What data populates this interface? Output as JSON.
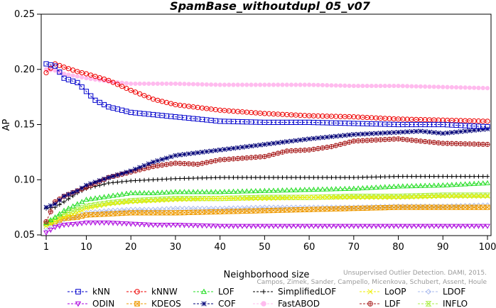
{
  "chart_data": {
    "type": "line",
    "title": "SpamBase_withoutdupl_05_v07",
    "xlabel": "Neighborhood size",
    "ylabel": "AP",
    "xlim": [
      1,
      100
    ],
    "ylim": [
      0.05,
      0.25
    ],
    "x_ticks": [
      1,
      10,
      20,
      30,
      40,
      50,
      60,
      70,
      80,
      90,
      100
    ],
    "x_tick_labels": [
      "1",
      "10",
      "20",
      "30",
      "40",
      "50",
      "60",
      "70",
      "80",
      "90",
      "100"
    ],
    "y_ticks": [
      0.05,
      0.1,
      0.15,
      0.2,
      0.25
    ],
    "y_tick_labels": [
      "0.05",
      "0.10",
      "0.15",
      "0.20",
      "0.25"
    ],
    "grid": false,
    "legend_position": "bottom",
    "watermark": [
      "Unsupervised Outlier Detection. DAMI, 2015.",
      "Campos, Zimek, Sander, Campello, Micenkova, Schubert, Assent, Houle"
    ],
    "series": [
      {
        "name": "kNN",
        "color": "#0000cc",
        "marker": "square",
        "k": [
          1,
          3,
          5,
          8,
          10,
          12,
          15,
          20,
          25,
          30,
          40,
          50,
          60,
          70,
          80,
          90,
          100
        ],
        "values": [
          0.205,
          0.203,
          0.192,
          0.188,
          0.18,
          0.172,
          0.166,
          0.161,
          0.159,
          0.157,
          0.153,
          0.152,
          0.152,
          0.151,
          0.15,
          0.15,
          0.148
        ]
      },
      {
        "name": "kNNW",
        "color": "#ee0000",
        "marker": "circle",
        "k": [
          1,
          3,
          5,
          8,
          10,
          15,
          20,
          25,
          30,
          40,
          50,
          60,
          70,
          80,
          90,
          100
        ],
        "values": [
          0.197,
          0.205,
          0.202,
          0.198,
          0.196,
          0.19,
          0.181,
          0.173,
          0.168,
          0.163,
          0.16,
          0.158,
          0.157,
          0.155,
          0.154,
          0.153
        ]
      },
      {
        "name": "LOF",
        "color": "#22dd22",
        "marker": "triangle",
        "k": [
          1,
          3,
          5,
          8,
          10,
          15,
          20,
          25,
          30,
          40,
          50,
          60,
          70,
          80,
          90,
          100
        ],
        "values": [
          0.061,
          0.066,
          0.072,
          0.078,
          0.082,
          0.085,
          0.088,
          0.088,
          0.089,
          0.089,
          0.09,
          0.091,
          0.092,
          0.094,
          0.095,
          0.097
        ]
      },
      {
        "name": "SimplifiedLOF",
        "color": "#000000",
        "marker": "plus",
        "k": [
          1,
          3,
          5,
          8,
          10,
          15,
          20,
          25,
          30,
          40,
          50,
          60,
          70,
          80,
          90,
          100
        ],
        "values": [
          0.074,
          0.075,
          0.08,
          0.088,
          0.092,
          0.097,
          0.099,
          0.1,
          0.101,
          0.102,
          0.102,
          0.102,
          0.102,
          0.103,
          0.103,
          0.103
        ]
      },
      {
        "name": "LoOP",
        "color": "#eeee00",
        "marker": "x",
        "k": [
          1,
          3,
          5,
          8,
          10,
          15,
          20,
          25,
          30,
          40,
          50,
          60,
          70,
          80,
          90,
          100
        ],
        "values": [
          0.058,
          0.062,
          0.066,
          0.07,
          0.074,
          0.078,
          0.08,
          0.081,
          0.082,
          0.083,
          0.083,
          0.084,
          0.084,
          0.084,
          0.085,
          0.085
        ]
      },
      {
        "name": "LDOF",
        "color": "#aabbee",
        "marker": "diamond",
        "k": [
          1,
          3,
          5,
          8,
          10,
          15,
          20,
          25,
          30,
          40,
          50,
          60,
          70,
          80,
          90,
          100
        ],
        "values": [
          0.056,
          0.06,
          0.064,
          0.067,
          0.07,
          0.072,
          0.073,
          0.073,
          0.074,
          0.074,
          0.075,
          0.075,
          0.075,
          0.076,
          0.076,
          0.077
        ]
      },
      {
        "name": "ODIN",
        "color": "#aa00dd",
        "marker": "triangle-down",
        "k": [
          1,
          3,
          5,
          8,
          10,
          15,
          20,
          25,
          30,
          40,
          50,
          60,
          70,
          80,
          90,
          100
        ],
        "values": [
          0.052,
          0.057,
          0.059,
          0.06,
          0.061,
          0.061,
          0.06,
          0.059,
          0.059,
          0.058,
          0.058,
          0.058,
          0.058,
          0.058,
          0.058,
          0.058
        ]
      },
      {
        "name": "KDEOS",
        "color": "#ee9900",
        "marker": "square-x",
        "k": [
          1,
          3,
          5,
          8,
          10,
          15,
          20,
          25,
          30,
          40,
          50,
          60,
          70,
          80,
          90,
          100
        ],
        "values": [
          0.06,
          0.062,
          0.065,
          0.066,
          0.068,
          0.069,
          0.07,
          0.07,
          0.07,
          0.071,
          0.072,
          0.073,
          0.074,
          0.075,
          0.075,
          0.075
        ]
      },
      {
        "name": "COF",
        "color": "#000077",
        "marker": "asterisk",
        "k": [
          1,
          3,
          5,
          8,
          10,
          15,
          20,
          25,
          30,
          40,
          50,
          60,
          70,
          80,
          85,
          90,
          100
        ],
        "values": [
          0.075,
          0.078,
          0.085,
          0.09,
          0.095,
          0.102,
          0.108,
          0.116,
          0.122,
          0.127,
          0.132,
          0.137,
          0.141,
          0.143,
          0.144,
          0.142,
          0.146
        ]
      },
      {
        "name": "FastABOD",
        "color": "#ffbbee",
        "marker": "circle-filled",
        "k": [
          1,
          3,
          5,
          10,
          15,
          20,
          30,
          40,
          50,
          60,
          70,
          80,
          90,
          100
        ],
        "values": [
          0.2,
          0.199,
          0.196,
          0.192,
          0.189,
          0.187,
          0.187,
          0.186,
          0.186,
          0.186,
          0.185,
          0.185,
          0.184,
          0.183
        ]
      },
      {
        "name": "LDF",
        "color": "#aa2222",
        "marker": "circle-plus",
        "k": [
          1,
          3,
          5,
          8,
          10,
          15,
          20,
          25,
          30,
          35,
          40,
          50,
          55,
          60,
          65,
          70,
          80,
          90,
          100
        ],
        "values": [
          0.062,
          0.08,
          0.085,
          0.09,
          0.093,
          0.102,
          0.107,
          0.112,
          0.115,
          0.114,
          0.118,
          0.121,
          0.126,
          0.127,
          0.13,
          0.135,
          0.137,
          0.133,
          0.132
        ]
      },
      {
        "name": "INFLO",
        "color": "#aaee44",
        "marker": "hourglass",
        "k": [
          1,
          3,
          5,
          8,
          10,
          15,
          20,
          25,
          30,
          40,
          50,
          60,
          70,
          80,
          90,
          100
        ],
        "values": [
          0.06,
          0.064,
          0.069,
          0.073,
          0.076,
          0.079,
          0.081,
          0.082,
          0.083,
          0.083,
          0.084,
          0.084,
          0.085,
          0.085,
          0.086,
          0.086
        ]
      }
    ]
  }
}
